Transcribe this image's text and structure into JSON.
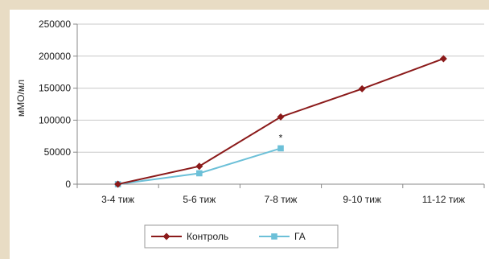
{
  "chart_data": {
    "type": "line",
    "categories": [
      "3-4 тиж",
      "5-6 тиж",
      "7-8 тиж",
      "9-10 тиж",
      "11-12 тиж"
    ],
    "ylabel": "мМО/мл",
    "xlabel": "",
    "ylim": [
      0,
      250000
    ],
    "yticks": [
      0,
      50000,
      100000,
      150000,
      200000,
      250000
    ],
    "grid": true,
    "legend_position": "bottom",
    "series": [
      {
        "name": "Контроль",
        "color": "#8b1a1a",
        "marker": "diamond",
        "values": [
          0,
          28000,
          105000,
          149000,
          196000
        ]
      },
      {
        "name": "ГА",
        "color": "#6cc0d8",
        "marker": "square",
        "values": [
          0,
          17000,
          56000,
          null,
          null
        ]
      }
    ],
    "annotations": [
      {
        "text": "*",
        "category": "7-8 тиж",
        "series": "ГА"
      }
    ]
  }
}
